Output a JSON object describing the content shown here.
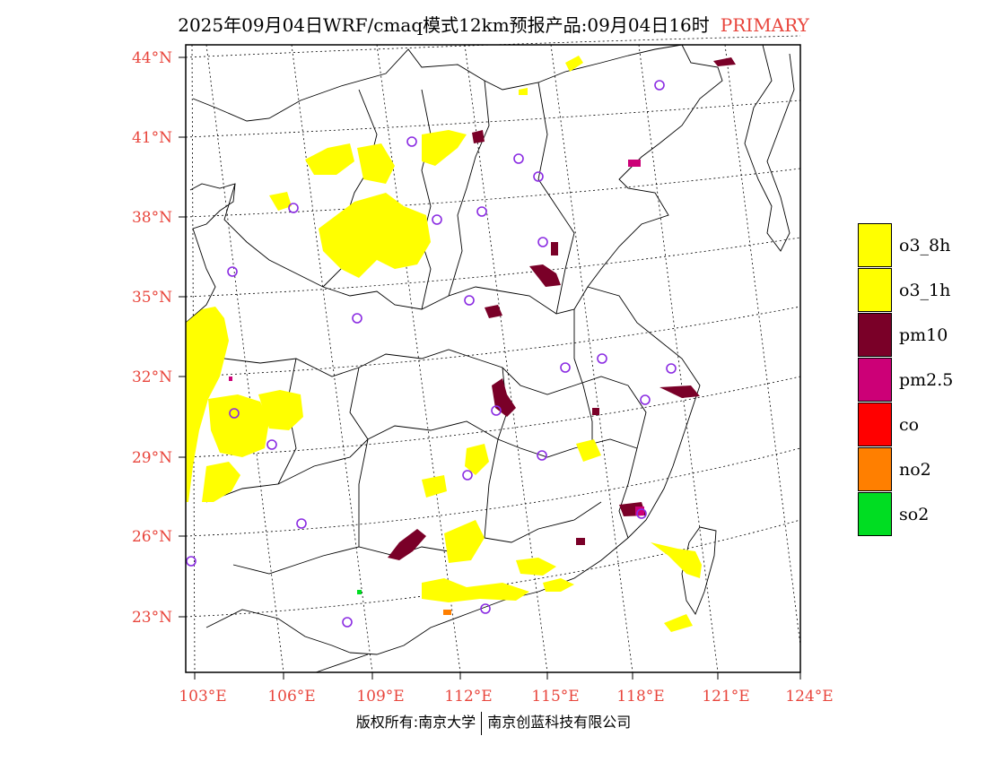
{
  "title": {
    "text": "2025年09月04日WRF/cmaq模式12km预报产品:09月04日16时",
    "tag": "PRIMARY"
  },
  "axes": {
    "lat_labels": [
      "44°N",
      "41°N",
      "38°N",
      "35°N",
      "32°N",
      "29°N",
      "26°N",
      "23°N"
    ],
    "lon_labels": [
      "103°E",
      "106°E",
      "109°E",
      "112°E",
      "115°E",
      "118°E",
      "121°E",
      "124°E"
    ],
    "label_color": "#e8453c"
  },
  "legend": {
    "items": [
      {
        "label": "o3_8h",
        "color": "#ffff00"
      },
      {
        "label": "o3_1h",
        "color": "#ffff00"
      },
      {
        "label": "pm10",
        "color": "#7a0028"
      },
      {
        "label": "pm2.5",
        "color": "#cc0077"
      },
      {
        "label": "co",
        "color": "#ff0000"
      },
      {
        "label": "no2",
        "color": "#ff7f00"
      },
      {
        "label": "so2",
        "color": "#00dd22"
      }
    ]
  },
  "footer": {
    "left": "版权所有:南京大学",
    "right": "南京创蓝科技有限公司"
  },
  "map_colors": {
    "o3": "#ffff00",
    "pm10": "#7a0028",
    "pm25": "#cc0077",
    "no2": "#ff7f00",
    "so2": "#00dd22",
    "station": "#8a2be2"
  }
}
